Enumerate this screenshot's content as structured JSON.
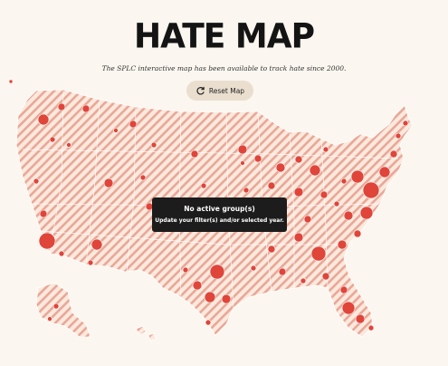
{
  "header": {
    "title": "HATE MAP",
    "subtitle": "The SPLC interactive map has been available to track hate since 2000."
  },
  "controls": {
    "reset_label": "Reset Map",
    "reset_icon": "reset-icon"
  },
  "notice": {
    "heading": "No active group(s)",
    "message": "Update your filter(s) and/or selected year."
  },
  "colors": {
    "background": "#fbf6ef",
    "map_stripe": "#e8a898",
    "marker": "#e0453a",
    "overlay": "#1c1c1c"
  }
}
